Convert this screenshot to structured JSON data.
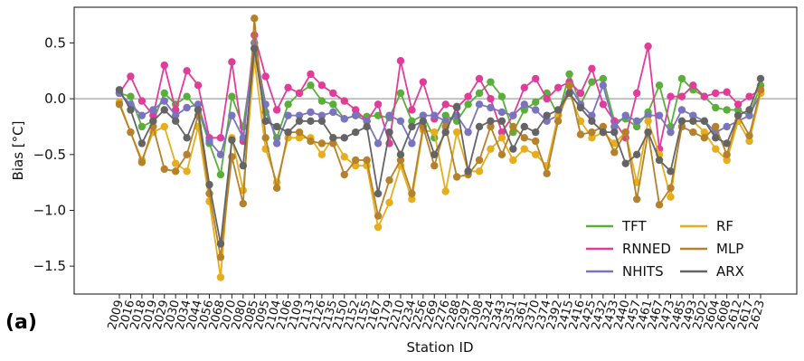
{
  "panel_label": "(a)",
  "chart_data": {
    "type": "line",
    "title": "",
    "xlabel": "Station ID",
    "ylabel": "Bias [°C]",
    "ylim": [
      -1.75,
      0.82
    ],
    "yticks": [
      0.5,
      0.0,
      -0.5,
      -1.0,
      -1.5
    ],
    "ytick_labels": [
      "0.5",
      "0.0",
      "−0.5",
      "−1.0",
      "−1.5"
    ],
    "reference_line": 0.0,
    "reference_color": "#a0a0a0",
    "grid": false,
    "legend_position": "lower-right",
    "categories": [
      "2009",
      "2016",
      "2018",
      "2019",
      "2029",
      "2030",
      "2034",
      "2044",
      "2056",
      "2068",
      "2070",
      "2080",
      "2085",
      "2095",
      "2104",
      "2106",
      "2109",
      "2113",
      "2126",
      "2135",
      "2150",
      "2152",
      "2155",
      "2167",
      "2179",
      "2210",
      "2234",
      "2256",
      "2269",
      "2276",
      "2288",
      "2297",
      "2308",
      "2324",
      "2343",
      "2351",
      "2361",
      "2370",
      "2374",
      "2392",
      "2415",
      "2416",
      "2425",
      "2432",
      "2433",
      "2440",
      "2457",
      "2461",
      "2467",
      "2473",
      "2485",
      "2493",
      "2502",
      "2604",
      "2608",
      "2612",
      "2617",
      "2623"
    ],
    "x_tick_labels": [
      "2009",
      "2016",
      "2018",
      "2019",
      "2029",
      "2030",
      "2034",
      "2044",
      "2056",
      "2068",
      "2070",
      "2080",
      "2085",
      "2095",
      "2104",
      "2106",
      "2109",
      "2113",
      "2126",
      "2135",
      "2150",
      "2152",
      "2155",
      "2167",
      "2179",
      "2210",
      "2234",
      "2256",
      "2269",
      "2276",
      "2288",
      "2297",
      "2308",
      "2324",
      "2343",
      "2351",
      "2361",
      "2370",
      "2374",
      "2392",
      "2415",
      "2416",
      "2425",
      "2432",
      "2433",
      "2440",
      "2457",
      "2461",
      "2467",
      "2473",
      "2485",
      "2493",
      "2502",
      "2604",
      "2608",
      "2612",
      "2617",
      "2623"
    ],
    "x_tick_visible": [
      true,
      true,
      true,
      true,
      true,
      true,
      true,
      true,
      true,
      true,
      true,
      true,
      true,
      true,
      true,
      true,
      true,
      true,
      true,
      true,
      true,
      true,
      true,
      true,
      true,
      true,
      true,
      true,
      true,
      true,
      true,
      true,
      true,
      true,
      true,
      true,
      true,
      true,
      true,
      true,
      true,
      true,
      true,
      true,
      true,
      true,
      true,
      true,
      true,
      true,
      true,
      true,
      true,
      true,
      true,
      true,
      true,
      true
    ],
    "series": [
      {
        "name": "TFT",
        "color": "#5aae3a",
        "values": [
          0.05,
          0.02,
          -0.25,
          -0.2,
          0.05,
          -0.05,
          0.02,
          -0.1,
          -0.4,
          -0.68,
          0.02,
          -0.25,
          0.45,
          -0.12,
          -0.35,
          -0.05,
          0.05,
          0.12,
          -0.02,
          -0.05,
          -0.18,
          -0.15,
          -0.16,
          -0.15,
          -0.17,
          0.05,
          -0.2,
          -0.15,
          -0.35,
          -0.15,
          -0.2,
          -0.05,
          0.05,
          0.15,
          0.02,
          -0.3,
          -0.1,
          -0.03,
          0.05,
          -0.15,
          0.22,
          -0.05,
          0.15,
          0.18,
          -0.2,
          -0.18,
          -0.25,
          -0.12,
          0.12,
          -0.25,
          0.18,
          0.08,
          0.02,
          -0.08,
          -0.1,
          -0.1,
          -0.15,
          0.12
        ]
      },
      {
        "name": "RNNED",
        "color": "#e13c9a",
        "values": [
          0.05,
          0.2,
          -0.02,
          -0.15,
          0.3,
          -0.1,
          0.25,
          0.12,
          -0.35,
          -0.35,
          0.33,
          -0.38,
          0.57,
          0.2,
          -0.1,
          0.1,
          0.05,
          0.22,
          0.12,
          0.05,
          -0.02,
          -0.1,
          -0.2,
          -0.05,
          -0.4,
          0.34,
          -0.1,
          0.15,
          -0.18,
          -0.05,
          -0.08,
          0.02,
          0.18,
          0.0,
          -0.3,
          -0.15,
          0.1,
          0.18,
          0.0,
          0.1,
          0.15,
          0.05,
          0.27,
          -0.05,
          -0.2,
          -0.35,
          0.05,
          0.47,
          -0.45,
          0.02,
          0.02,
          0.12,
          0.02,
          0.05,
          0.06,
          -0.05,
          0.02,
          0.08
        ]
      },
      {
        "name": "NHITS",
        "color": "#7a74bf",
        "values": [
          0.05,
          -0.05,
          -0.15,
          -0.1,
          -0.02,
          -0.15,
          -0.08,
          -0.05,
          -0.38,
          -0.5,
          -0.15,
          -0.35,
          0.5,
          -0.05,
          -0.4,
          -0.15,
          -0.15,
          -0.12,
          -0.15,
          -0.12,
          -0.18,
          -0.15,
          -0.2,
          -0.4,
          -0.15,
          -0.2,
          -0.4,
          -0.15,
          -0.15,
          -0.2,
          -0.15,
          -0.3,
          -0.05,
          -0.08,
          -0.12,
          -0.15,
          -0.05,
          -0.1,
          -0.2,
          -0.15,
          0.12,
          -0.05,
          -0.15,
          0.12,
          -0.25,
          -0.15,
          -0.2,
          -0.15,
          -0.15,
          -0.3,
          -0.1,
          -0.15,
          -0.2,
          -0.3,
          -0.25,
          -0.2,
          -0.15,
          0.05
        ]
      },
      {
        "name": "RF",
        "color": "#e6ad1c",
        "values": [
          -0.03,
          -0.3,
          -0.55,
          -0.3,
          -0.25,
          -0.58,
          -0.65,
          -0.25,
          -0.92,
          -1.6,
          -0.35,
          -0.82,
          0.35,
          -0.45,
          -0.75,
          -0.35,
          -0.35,
          -0.35,
          -0.5,
          -0.35,
          -0.52,
          -0.6,
          -0.6,
          -1.15,
          -0.93,
          -0.6,
          -0.9,
          -0.28,
          -0.3,
          -0.83,
          -0.3,
          -0.65,
          -0.65,
          -0.45,
          -0.35,
          -0.55,
          -0.45,
          -0.5,
          -0.6,
          -0.15,
          0.05,
          -0.2,
          -0.35,
          -0.3,
          -0.4,
          -0.3,
          -0.75,
          -0.2,
          -0.5,
          -0.88,
          -0.2,
          -0.2,
          -0.3,
          -0.45,
          -0.55,
          -0.2,
          -0.38,
          0.05
        ]
      },
      {
        "name": "MLP",
        "color": "#b5812a",
        "values": [
          -0.05,
          -0.3,
          -0.57,
          -0.25,
          -0.63,
          -0.65,
          -0.5,
          -0.15,
          -0.85,
          -1.42,
          -0.52,
          -0.94,
          0.72,
          -0.35,
          -0.8,
          -0.3,
          -0.3,
          -0.38,
          -0.4,
          -0.4,
          -0.68,
          -0.55,
          -0.55,
          -1.05,
          -0.73,
          -0.55,
          -0.85,
          -0.25,
          -0.6,
          -0.25,
          -0.7,
          -0.68,
          -0.55,
          -0.25,
          -0.5,
          -0.25,
          -0.35,
          -0.38,
          -0.67,
          -0.2,
          0.12,
          -0.32,
          -0.3,
          -0.25,
          -0.48,
          -0.3,
          -0.9,
          -0.3,
          -0.95,
          -0.8,
          -0.25,
          -0.3,
          -0.35,
          -0.25,
          -0.5,
          -0.15,
          -0.33,
          0.08
        ]
      },
      {
        "name": "ARX",
        "color": "#646464",
        "values": [
          0.08,
          -0.1,
          -0.4,
          -0.2,
          -0.1,
          -0.2,
          -0.35,
          -0.1,
          -0.77,
          -1.3,
          -0.37,
          -0.6,
          0.45,
          -0.2,
          -0.25,
          -0.3,
          -0.2,
          -0.2,
          -0.2,
          -0.35,
          -0.35,
          -0.3,
          -0.25,
          -0.85,
          -0.3,
          -0.5,
          -0.25,
          -0.2,
          -0.5,
          -0.3,
          -0.07,
          -0.65,
          -0.25,
          -0.2,
          -0.2,
          -0.45,
          -0.25,
          -0.3,
          -0.15,
          -0.1,
          0.05,
          -0.08,
          -0.2,
          -0.3,
          -0.3,
          -0.58,
          -0.5,
          -0.3,
          -0.55,
          -0.65,
          -0.2,
          -0.2,
          -0.2,
          -0.35,
          -0.4,
          -0.15,
          -0.1,
          0.18
        ]
      }
    ],
    "legend": {
      "columns": [
        [
          "TFT",
          "RNNED",
          "NHITS"
        ],
        [
          "RF",
          "MLP",
          "ARX"
        ]
      ]
    }
  }
}
